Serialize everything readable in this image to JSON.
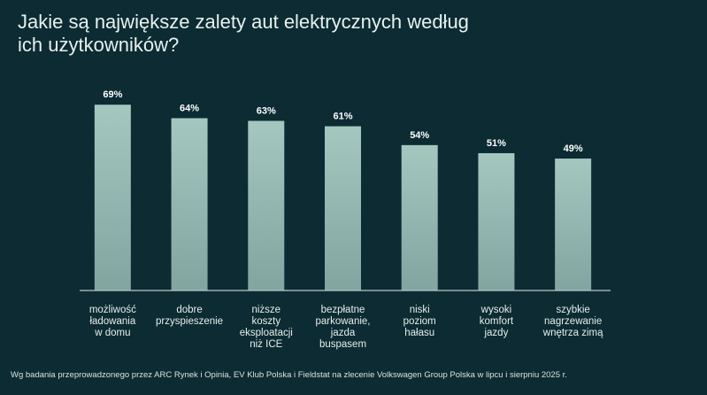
{
  "chart_data": {
    "type": "bar",
    "title": "Jakie są największe zalety aut elektrycznych według\nich użytkowników?",
    "categories": [
      "możliwość\nładowania\nw domu",
      "dobre\nprzyspieszenie",
      "niższe\nkoszty\neksploatacji\nniż ICE",
      "bezpłatne\nparkowanie,\njazda\nbuspasem",
      "niski\npoziom\nhałasu",
      "wysoki\nkomfort\njazdy",
      "szybkie\nnagrzewanie\nwnętrza zimą"
    ],
    "values": [
      69,
      64,
      63,
      61,
      54,
      51,
      49
    ],
    "value_labels": [
      "69%",
      "64%",
      "63%",
      "61%",
      "54%",
      "51%",
      "49%"
    ],
    "color": "#a4c7bf",
    "footnote": "Wg badania przeprowadzonego przez ARC Rynek i Opinia, EV Klub Polska i Fieldstat na zlecenie Volkswagen Group Polska w lipcu i sierpniu 2025 r."
  }
}
